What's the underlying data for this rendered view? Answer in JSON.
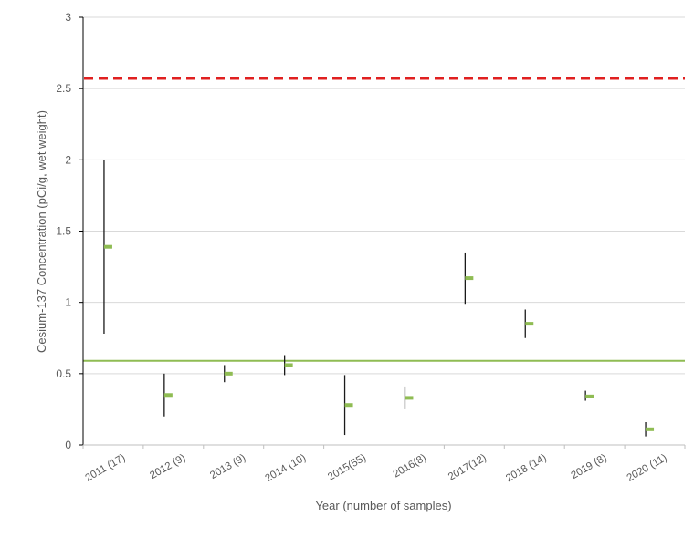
{
  "chart_data": {
    "type": "scatter",
    "title": "",
    "xlabel": "Year (number of samples)",
    "ylabel": "Cesium-137 Concentration (pCi/g, wet weight)",
    "ylim": [
      0,
      3
    ],
    "y_ticks": [
      "0",
      "0.5",
      "1",
      "1.5",
      "2",
      "2.5",
      "3"
    ],
    "grid": true,
    "legend": "none",
    "categories": [
      "2011 (17)",
      "2012 (9)",
      "2013 (9)",
      "2014 (10)",
      "2015(55)",
      "2016(8)",
      "2017(12)",
      "2018 (14)",
      "2019 (8)",
      "2020 (11)"
    ],
    "series": [
      {
        "role": "range",
        "color": "#1a1a1a",
        "low": [
          0.78,
          0.2,
          0.44,
          0.49,
          0.07,
          0.25,
          0.99,
          0.75,
          0.31,
          0.06
        ],
        "high": [
          2.0,
          0.5,
          0.56,
          0.63,
          0.49,
          0.41,
          1.35,
          0.95,
          0.38,
          0.16
        ]
      },
      {
        "role": "mean",
        "color": "#8fbc53",
        "values": [
          1.39,
          0.35,
          0.5,
          0.56,
          0.28,
          0.33,
          1.17,
          0.85,
          0.34,
          0.11
        ]
      }
    ],
    "reference_lines": [
      {
        "value": 2.57,
        "color": "#e02020",
        "style": "dashed"
      },
      {
        "value": 0.59,
        "color": "#8fbc53",
        "style": "solid"
      }
    ]
  }
}
